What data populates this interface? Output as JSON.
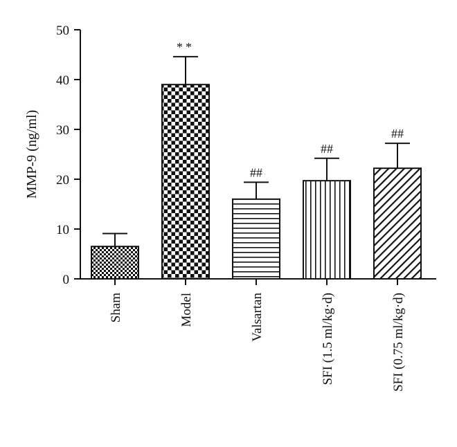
{
  "chart_data": {
    "type": "bar",
    "title": "",
    "xlabel": "",
    "ylabel": "MMP-9 (ng/ml)",
    "ylim": [
      0,
      50
    ],
    "yticks": [
      0,
      10,
      20,
      30,
      40,
      50
    ],
    "grid": false,
    "categories": [
      "Sham",
      "Model",
      "Valsartan",
      "SFI (1.5 ml/kg·d)",
      "SFI (0.75 ml/kg·d)"
    ],
    "values": [
      6.5,
      39.0,
      16.0,
      19.7,
      22.2
    ],
    "errors": [
      2.6,
      5.6,
      3.4,
      4.5,
      5.0
    ],
    "annotations": [
      "",
      "**",
      "##",
      "##",
      "##"
    ],
    "fill_patterns": [
      "small-checker",
      "large-checker",
      "horizontal-lines",
      "vertical-lines",
      "diagonal-lines"
    ]
  }
}
